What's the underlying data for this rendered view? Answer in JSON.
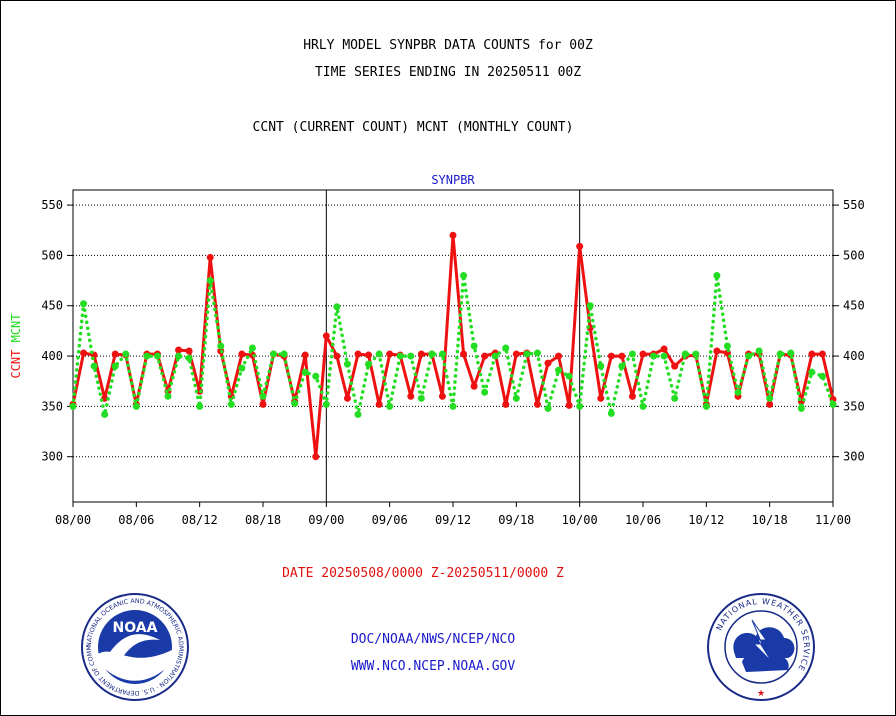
{
  "header": {
    "title1": "HRLY MODEL SYNPBR DATA COUNTS for 00Z",
    "title2": "TIME SERIES ENDING IN 20250511 00Z",
    "title3": "CCNT (CURRENT COUNT) MCNT (MONTHLY COUNT)"
  },
  "chart_data": {
    "type": "line",
    "title": "SYNPBR",
    "ylabel_left": [
      "CCNT",
      "MCNT"
    ],
    "ylim": [
      255,
      565
    ],
    "yticks": [
      300,
      350,
      400,
      450,
      500,
      550
    ],
    "x_count": 73,
    "x_ticks": [
      {
        "i": 0,
        "label": "08/00"
      },
      {
        "i": 6,
        "label": "08/06"
      },
      {
        "i": 12,
        "label": "08/12"
      },
      {
        "i": 18,
        "label": "08/18"
      },
      {
        "i": 24,
        "label": "09/00"
      },
      {
        "i": 30,
        "label": "09/06"
      },
      {
        "i": 36,
        "label": "09/12"
      },
      {
        "i": 42,
        "label": "09/18"
      },
      {
        "i": 48,
        "label": "10/00"
      },
      {
        "i": 54,
        "label": "10/06"
      },
      {
        "i": 60,
        "label": "10/12"
      },
      {
        "i": 66,
        "label": "10/18"
      },
      {
        "i": 72,
        "label": "11/00"
      }
    ],
    "day_dividers": [
      24,
      48
    ],
    "grid": true,
    "series": [
      {
        "name": "CCNT",
        "color": "#ee1111",
        "style": "solid",
        "values": [
          352,
          403,
          401,
          358,
          402,
          401,
          352,
          402,
          402,
          365,
          406,
          405,
          365,
          498,
          405,
          360,
          402,
          401,
          352,
          402,
          400,
          355,
          401,
          300,
          420,
          400,
          358,
          402,
          401,
          352,
          402,
          401,
          360,
          402,
          402,
          360,
          520,
          402,
          370,
          400,
          403,
          352,
          402,
          403,
          352,
          393,
          400,
          351,
          509,
          428,
          358,
          400,
          400,
          360,
          402,
          402,
          407,
          390,
          400,
          401,
          352,
          405,
          403,
          360,
          402,
          402,
          352,
          402,
          401,
          355,
          402,
          402,
          357
        ]
      },
      {
        "name": "MCNT",
        "color": "#22dd22",
        "style": "dotted",
        "values": [
          350,
          452,
          390,
          342,
          390,
          402,
          350,
          400,
          400,
          360,
          400,
          398,
          350,
          475,
          410,
          352,
          388,
          408,
          360,
          402,
          402,
          353,
          384,
          380,
          352,
          449,
          392,
          342,
          392,
          402,
          350,
          400,
          400,
          358,
          402,
          402,
          350,
          480,
          410,
          364,
          400,
          408,
          358,
          402,
          403,
          348,
          386,
          380,
          350,
          450,
          390,
          343,
          390,
          402,
          350,
          400,
          400,
          358,
          402,
          402,
          350,
          480,
          410,
          364,
          400,
          405,
          358,
          402,
          403,
          348,
          384,
          380,
          352
        ]
      }
    ]
  },
  "footer": {
    "date_range": "DATE 20250508/0000 Z-20250511/0000 Z",
    "link1": "DOC/NOAA/NWS/NCEP/NCO",
    "link2": "WWW.NCO.NCEP.NOAA.GOV"
  },
  "logos": {
    "noaa_text": "NOAA",
    "noaa_ring": "NATIONAL OCEANIC AND ATMOSPHERIC ADMINISTRATION · U.S. DEPARTMENT OF COMMERCE ·",
    "nws_ring": "NATIONAL WEATHER SERVICE"
  }
}
